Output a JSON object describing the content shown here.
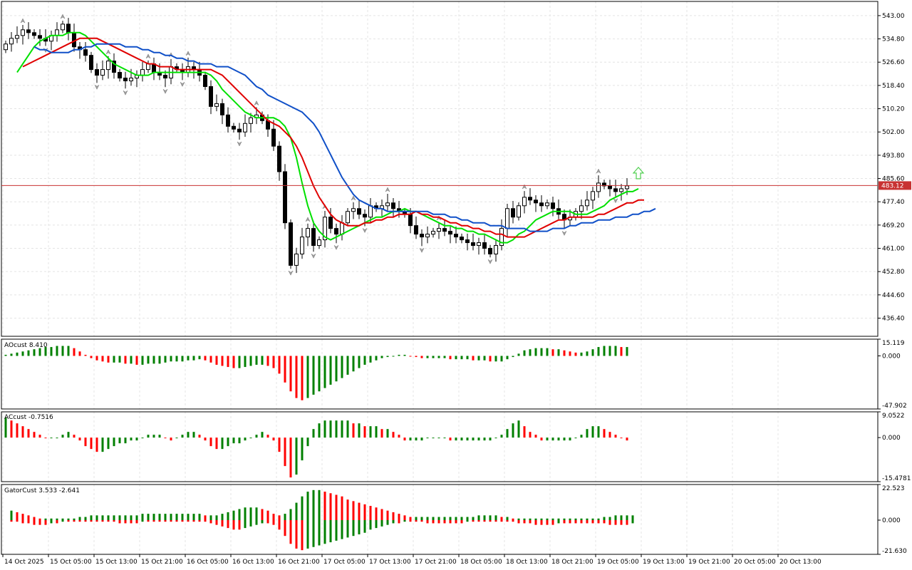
{
  "chart_data": [
    {
      "type": "candlestick",
      "pane": "main",
      "ylim": [
        430,
        548
      ],
      "y_ticks": [
        "543.00",
        "534.80",
        "526.60",
        "518.40",
        "510.20",
        "502.00",
        "493.80",
        "485.60",
        "477.40",
        "469.20",
        "461.00",
        "452.80",
        "444.60",
        "436.40"
      ],
      "current_price": 483.12,
      "current_price_label": "483.12",
      "close": [
        533,
        535,
        536,
        538,
        537,
        536,
        535,
        534,
        536,
        538,
        540,
        537,
        532,
        531,
        529,
        524,
        522,
        524,
        527,
        523,
        521,
        520,
        521,
        522,
        524,
        526,
        523,
        522,
        521,
        525,
        524,
        523,
        525,
        524,
        522,
        518,
        511,
        512,
        508,
        504,
        503,
        502,
        505,
        507,
        508,
        506,
        503,
        497,
        488,
        470,
        455,
        459,
        465,
        468,
        462,
        464,
        472,
        468,
        466,
        470,
        474,
        475,
        473,
        472,
        476,
        475,
        476,
        477,
        475,
        474,
        473,
        469,
        466,
        465,
        466,
        467,
        468,
        467,
        466,
        465,
        464,
        463,
        462,
        463,
        461,
        459,
        462,
        468,
        475,
        472,
        476,
        479,
        478,
        477,
        476,
        477,
        475,
        473,
        471,
        472,
        474,
        476,
        478,
        481,
        484,
        483,
        482,
        481,
        482,
        483
      ],
      "open": [
        531,
        533,
        535,
        536,
        538,
        537,
        536,
        535,
        534,
        536,
        538,
        540,
        537,
        532,
        531,
        529,
        524,
        522,
        524,
        527,
        523,
        521,
        520,
        521,
        522,
        524,
        526,
        523,
        522,
        521,
        525,
        524,
        523,
        525,
        524,
        522,
        518,
        511,
        512,
        508,
        504,
        503,
        502,
        505,
        507,
        508,
        506,
        503,
        497,
        488,
        470,
        455,
        459,
        465,
        468,
        462,
        464,
        472,
        468,
        466,
        470,
        474,
        475,
        473,
        472,
        476,
        475,
        476,
        477,
        475,
        474,
        473,
        469,
        466,
        465,
        466,
        467,
        468,
        467,
        466,
        465,
        464,
        463,
        462,
        463,
        461,
        459,
        462,
        468,
        475,
        472,
        476,
        479,
        478,
        477,
        476,
        477,
        475,
        473,
        471,
        472,
        474,
        476,
        478,
        481,
        484,
        483,
        482,
        481,
        482
      ],
      "moving_averages": [
        {
          "color": "#00e000",
          "values": [
            523,
            526,
            529,
            532,
            534,
            535,
            536,
            536,
            536,
            537,
            537,
            537,
            536,
            534,
            532,
            530,
            528,
            526,
            525,
            524,
            523,
            522,
            522,
            522,
            523,
            523,
            523,
            523,
            523,
            523,
            523,
            523,
            523,
            523,
            522,
            520,
            517,
            515,
            513,
            511,
            509,
            508,
            507,
            507,
            507,
            507,
            506,
            504,
            500,
            493,
            484,
            476,
            470,
            467,
            465,
            464,
            465,
            466,
            467,
            468,
            469,
            470,
            471,
            472,
            472,
            473,
            474,
            474,
            475,
            474,
            474,
            473,
            472,
            471,
            470,
            469,
            469,
            468,
            468,
            467,
            467,
            466,
            466,
            465,
            464,
            463,
            463,
            464,
            466,
            467,
            469,
            471,
            472,
            473,
            474,
            474,
            474,
            474,
            473,
            473,
            473,
            474,
            475,
            476,
            478,
            479,
            480,
            481,
            481,
            482
          ]
        },
        {
          "color": "#e00000",
          "values": [
            525,
            526,
            527,
            528,
            529,
            530,
            531,
            532,
            533,
            534,
            535,
            535,
            535,
            535,
            534,
            533,
            532,
            531,
            530,
            529,
            528,
            527,
            526,
            526,
            525,
            525,
            525,
            524,
            524,
            524,
            524,
            524,
            524,
            524,
            523,
            522,
            520,
            518,
            516,
            514,
            512,
            510,
            508,
            506,
            505,
            504,
            502,
            500,
            497,
            493,
            488,
            483,
            479,
            476,
            473,
            471,
            470,
            469,
            469,
            469,
            470,
            470,
            471,
            471,
            472,
            472,
            473,
            473,
            473,
            474,
            473,
            473,
            472,
            472,
            471,
            470,
            470,
            469,
            469,
            468,
            468,
            467,
            467,
            466,
            466,
            465,
            465,
            465,
            465,
            466,
            467,
            468,
            469,
            470,
            471,
            471,
            472,
            472,
            472,
            472,
            472,
            473,
            473,
            474,
            475,
            476,
            477,
            477,
            478,
            478
          ]
        },
        {
          "color": "#1050c8",
          "values": [
            532,
            531,
            531,
            530,
            530,
            530,
            530,
            531,
            531,
            532,
            532,
            533,
            533,
            533,
            533,
            533,
            532,
            532,
            532,
            531,
            531,
            530,
            530,
            529,
            529,
            528,
            528,
            527,
            527,
            526,
            526,
            526,
            525,
            525,
            525,
            524,
            523,
            522,
            520,
            518,
            517,
            515,
            514,
            513,
            512,
            511,
            510,
            509,
            507,
            505,
            502,
            498,
            494,
            490,
            486,
            483,
            480,
            478,
            477,
            476,
            475,
            475,
            474,
            474,
            474,
            474,
            474,
            474,
            474,
            474,
            473,
            473,
            473,
            472,
            472,
            471,
            471,
            470,
            470,
            470,
            469,
            469,
            469,
            468,
            468,
            468,
            468,
            467,
            467,
            467,
            467,
            468,
            468,
            468,
            469,
            469,
            470,
            470,
            470,
            471,
            471,
            471,
            472,
            472,
            472,
            473,
            473,
            474,
            474,
            475
          ]
        }
      ]
    },
    {
      "type": "bar",
      "pane": "AO",
      "title": "AOcust 8.410",
      "ylim": [
        -47.902,
        15.119
      ],
      "y_ticks": [
        "15.119",
        "0.000",
        "-47.902"
      ],
      "values": [
        1,
        2,
        3,
        4,
        5,
        6,
        7,
        8,
        8,
        9,
        9,
        9,
        7,
        4,
        1,
        -2,
        -4,
        -5,
        -6,
        -6,
        -6,
        -7,
        -7,
        -8,
        -8,
        -7,
        -7,
        -7,
        -6,
        -5,
        -5,
        -5,
        -4,
        -4,
        -3,
        -4,
        -6,
        -8,
        -9,
        -10,
        -11,
        -11,
        -10,
        -9,
        -8,
        -8,
        -9,
        -11,
        -16,
        -24,
        -32,
        -38,
        -40,
        -38,
        -35,
        -32,
        -29,
        -26,
        -23,
        -20,
        -17,
        -14,
        -11,
        -8,
        -6,
        -4,
        -2,
        -1,
        0,
        1,
        1,
        0,
        -1,
        -2,
        -2,
        -2,
        -2,
        -2,
        -3,
        -3,
        -3,
        -3,
        -4,
        -4,
        -4,
        -5,
        -5,
        -5,
        -3,
        -1,
        2,
        5,
        6,
        7,
        7,
        7,
        6,
        6,
        5,
        4,
        3,
        3,
        4,
        6,
        8,
        9,
        9,
        9,
        8,
        8
      ]
    },
    {
      "type": "bar",
      "pane": "AC",
      "title": "ACcust -0.7516",
      "ylim": [
        -15.4781,
        9.0522
      ],
      "y_ticks": [
        "9.0522",
        "0.000",
        "-15.4781"
      ],
      "values": [
        7,
        6,
        5,
        4,
        3,
        2,
        1,
        0,
        0,
        0,
        1,
        2,
        1,
        -1,
        -3,
        -4,
        -5,
        -5,
        -4,
        -3,
        -2,
        -2,
        -1,
        -1,
        0,
        1,
        1,
        1,
        0,
        -1,
        0,
        1,
        2,
        2,
        1,
        -1,
        -3,
        -4,
        -4,
        -3,
        -2,
        -2,
        -1,
        0,
        1,
        2,
        1,
        -1,
        -5,
        -10,
        -14,
        -13,
        -8,
        -3,
        3,
        5,
        6,
        6,
        6,
        6,
        6,
        5,
        5,
        4,
        4,
        4,
        3,
        3,
        2,
        1,
        -1,
        -1,
        -1,
        -1,
        0,
        0,
        0,
        0,
        -1,
        -1,
        -1,
        -1,
        -1,
        -1,
        -1,
        -1,
        0,
        1,
        3,
        5,
        6,
        4,
        2,
        1,
        -1,
        -1,
        -1,
        -1,
        -1,
        -1,
        0,
        1,
        3,
        4,
        4,
        3,
        2,
        1,
        0,
        -1
      ]
    },
    {
      "type": "bar",
      "pane": "Gator",
      "title": "GatorCust 3.533 -2.641",
      "ylim": [
        -21.63,
        22.523
      ],
      "y_ticks": [
        "22.523",
        "0.000",
        "-21.630"
      ],
      "upper": [
        6,
        5,
        4,
        3,
        2,
        1,
        1,
        1,
        1,
        1,
        1,
        1,
        2,
        2,
        3,
        3,
        3,
        3,
        3,
        3,
        3,
        3,
        3,
        4,
        4,
        4,
        4,
        4,
        4,
        4,
        4,
        4,
        4,
        4,
        3,
        3,
        3,
        4,
        5,
        6,
        7,
        8,
        8,
        8,
        7,
        6,
        4,
        3,
        4,
        7,
        11,
        15,
        18,
        19,
        19,
        18,
        17,
        16,
        15,
        13,
        12,
        11,
        10,
        9,
        8,
        7,
        6,
        5,
        4,
        3,
        2,
        2,
        2,
        2,
        2,
        2,
        2,
        2,
        2,
        2,
        2,
        2,
        3,
        3,
        3,
        3,
        2,
        2,
        1,
        1,
        1,
        1,
        1,
        1,
        1,
        1,
        1,
        1,
        1,
        1,
        1,
        1,
        1,
        1,
        2,
        2,
        3,
        3,
        3,
        3
      ],
      "lower": [
        -1,
        -1,
        -2,
        -2,
        -3,
        -3,
        -3,
        -2,
        -2,
        -1,
        -1,
        -1,
        -1,
        -1,
        -1,
        -1,
        -1,
        -1,
        -1,
        -2,
        -2,
        -2,
        -2,
        -1,
        -1,
        -1,
        -1,
        -1,
        -1,
        -1,
        -1,
        -1,
        -1,
        -1,
        -1,
        -2,
        -3,
        -4,
        -5,
        -6,
        -6,
        -5,
        -4,
        -3,
        -2,
        -2,
        -3,
        -6,
        -10,
        -15,
        -18,
        -19,
        -18,
        -17,
        -16,
        -15,
        -14,
        -13,
        -12,
        -11,
        -10,
        -9,
        -8,
        -6,
        -5,
        -4,
        -3,
        -2,
        -2,
        -1,
        -1,
        -1,
        -1,
        -2,
        -2,
        -2,
        -2,
        -2,
        -2,
        -2,
        -1,
        -1,
        -1,
        -1,
        -1,
        -1,
        -1,
        -1,
        -1,
        -2,
        -2,
        -2,
        -3,
        -3,
        -3,
        -3,
        -2,
        -2,
        -2,
        -2,
        -2,
        -2,
        -2,
        -2,
        -2,
        -3,
        -3,
        -3,
        -3,
        -2
      ]
    }
  ],
  "x_axis": {
    "labels": [
      "14 Oct 2025",
      "15 Oct 05:00",
      "15 Oct 13:00",
      "15 Oct 21:00",
      "16 Oct 05:00",
      "16 Oct 13:00",
      "16 Oct 21:00",
      "17 Oct 05:00",
      "17 Oct 13:00",
      "17 Oct 21:00",
      "18 Oct 05:00",
      "18 Oct 13:00",
      "18 Oct 21:00",
      "19 Oct 05:00",
      "19 Oct 13:00",
      "19 Oct 21:00",
      "20 Oct 05:00",
      "20 Oct 13:00"
    ],
    "label_bar_index": [
      0,
      8,
      16,
      24,
      32,
      40,
      48,
      56,
      64,
      72,
      80,
      88,
      96,
      104,
      112,
      120,
      128,
      136
    ]
  },
  "colors": {
    "bull_bar": "#008000",
    "bear_bar": "#ff0000",
    "current_price_line": "#c83232",
    "arrow_up": "#50d050",
    "fractal": "#a0a0a0"
  },
  "signal_arrow": "up"
}
